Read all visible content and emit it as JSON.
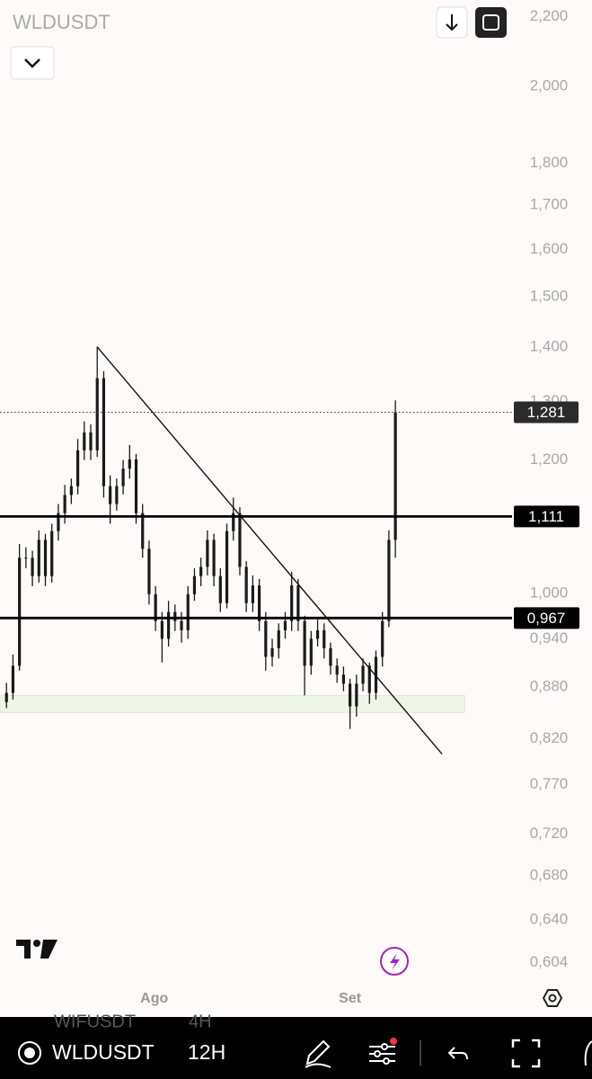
{
  "header": {
    "symbol": "WLDUSDT"
  },
  "chart_data": {
    "type": "candlestick",
    "color": "#1a1a1a",
    "log_scale": true,
    "ylim": [
      0.586,
      2.25
    ],
    "yticks": [
      {
        "value": 2.2,
        "label": "2,200"
      },
      {
        "value": 2.0,
        "label": "2,000"
      },
      {
        "value": 1.8,
        "label": "1,800"
      },
      {
        "value": 1.7,
        "label": "1,700"
      },
      {
        "value": 1.6,
        "label": "1,600"
      },
      {
        "value": 1.5,
        "label": "1,500"
      },
      {
        "value": 1.4,
        "label": "1,400"
      },
      {
        "value": 1.3,
        "label": "1,300"
      },
      {
        "value": 1.2,
        "label": "1,200"
      },
      {
        "value": 1.0,
        "label": "1,000"
      },
      {
        "value": 0.94,
        "label": "0,940"
      },
      {
        "value": 0.88,
        "label": "0,880"
      },
      {
        "value": 0.82,
        "label": "0,820"
      },
      {
        "value": 0.77,
        "label": "0,770"
      },
      {
        "value": 0.72,
        "label": "0,720"
      },
      {
        "value": 0.68,
        "label": "0,680"
      },
      {
        "value": 0.64,
        "label": "0,640"
      },
      {
        "value": 0.604,
        "label": "0,604"
      }
    ],
    "xlim": [
      -1,
      78
    ],
    "xticks": [
      {
        "value": 22.8,
        "label": "Ago"
      },
      {
        "value": 53,
        "label": "Set"
      }
    ],
    "x": [
      0,
      1,
      2,
      3,
      4,
      5,
      6,
      7,
      8,
      9,
      10,
      11,
      12,
      13,
      14,
      15,
      16,
      17,
      18,
      19,
      20,
      21,
      22,
      23,
      24,
      25,
      26,
      27,
      28,
      29,
      30,
      31,
      32,
      33,
      34,
      35,
      36,
      37,
      38,
      39,
      40,
      41,
      42,
      43,
      44,
      45,
      46,
      47,
      48,
      49,
      50,
      51,
      52,
      53,
      54,
      55,
      56,
      57,
      58,
      59,
      60
    ],
    "open": [
      0.862,
      0.873,
      0.906,
      1.05,
      1.05,
      1.024,
      1.076,
      1.024,
      1.089,
      1.116,
      1.144,
      1.158,
      1.216,
      1.246,
      1.216,
      1.342,
      1.158,
      1.13,
      1.158,
      1.186,
      1.201,
      1.116,
      1.063,
      0.999,
      0.963,
      0.94,
      0.975,
      0.963,
      0.951,
      0.999,
      1.024,
      1.037,
      1.076,
      1.024,
      0.987,
      1.089,
      1.116,
      1.037,
      0.987,
      1.011,
      0.963,
      0.917,
      0.928,
      0.951,
      0.963,
      1.011,
      0.963,
      0.906,
      0.94,
      0.951,
      0.928,
      0.906,
      0.895,
      0.884,
      0.857,
      0.884,
      0.906,
      0.873,
      0.917,
      0.963,
      1.076
    ],
    "high": [
      0.885,
      0.92,
      1.07,
      1.065,
      1.06,
      1.09,
      1.085,
      1.1,
      1.13,
      1.16,
      1.17,
      1.235,
      1.265,
      1.26,
      1.401,
      1.355,
      1.175,
      1.17,
      1.2,
      1.225,
      1.21,
      1.13,
      1.075,
      1.01,
      0.975,
      0.99,
      0.985,
      0.975,
      1.01,
      1.035,
      1.05,
      1.09,
      1.085,
      1.035,
      1.1,
      1.14,
      1.125,
      1.045,
      1.025,
      1.02,
      0.975,
      0.94,
      0.96,
      0.975,
      1.03,
      1.02,
      0.97,
      0.95,
      0.965,
      0.96,
      0.935,
      0.915,
      0.905,
      0.89,
      0.895,
      0.915,
      0.91,
      0.925,
      0.975,
      1.09,
      1.302
    ],
    "low": [
      0.855,
      0.865,
      0.9,
      1.035,
      1.01,
      1.015,
      1.01,
      1.015,
      1.075,
      1.1,
      1.13,
      1.145,
      1.2,
      1.2,
      1.205,
      1.14,
      1.1,
      1.12,
      1.145,
      1.17,
      1.1,
      1.05,
      0.985,
      0.95,
      0.91,
      0.93,
      0.95,
      0.935,
      0.94,
      0.99,
      1.01,
      1.025,
      1.01,
      0.975,
      0.98,
      1.075,
      1.025,
      0.975,
      0.975,
      0.95,
      0.9,
      0.905,
      0.915,
      0.94,
      0.95,
      0.95,
      0.87,
      0.895,
      0.93,
      0.915,
      0.895,
      0.885,
      0.875,
      0.831,
      0.845,
      0.875,
      0.86,
      0.865,
      0.905,
      0.955,
      1.05
    ],
    "close": [
      0.873,
      0.906,
      1.05,
      1.05,
      1.024,
      1.076,
      1.024,
      1.089,
      1.116,
      1.144,
      1.158,
      1.216,
      1.246,
      1.216,
      1.342,
      1.158,
      1.13,
      1.158,
      1.186,
      1.201,
      1.116,
      1.063,
      0.999,
      0.963,
      0.94,
      0.975,
      0.963,
      0.951,
      0.999,
      1.024,
      1.037,
      1.076,
      1.024,
      0.987,
      1.089,
      1.116,
      1.037,
      0.987,
      1.011,
      0.963,
      0.917,
      0.928,
      0.951,
      0.963,
      1.011,
      0.963,
      0.906,
      0.94,
      0.951,
      0.928,
      0.906,
      0.895,
      0.884,
      0.857,
      0.884,
      0.906,
      0.873,
      0.917,
      0.963,
      1.076,
      1.281
    ],
    "levels": [
      {
        "value": 1.111,
        "label": "1,111"
      },
      {
        "value": 0.967,
        "label": "0,967"
      }
    ],
    "last_price": {
      "value": 1.281,
      "label": "1,281"
    },
    "trendline": {
      "x": [
        13.97,
        67.2
      ],
      "y": [
        1.401,
        0.803
      ]
    },
    "zone": {
      "x": [
        -1,
        70.7
      ],
      "y": [
        0.85,
        0.87
      ],
      "color": "#eef6e8"
    }
  },
  "toolbar": {
    "symbol": "WLDUSDT",
    "interval": "12H",
    "ghost_symbol": "WIFUSDT",
    "ghost_interval": "4H"
  }
}
